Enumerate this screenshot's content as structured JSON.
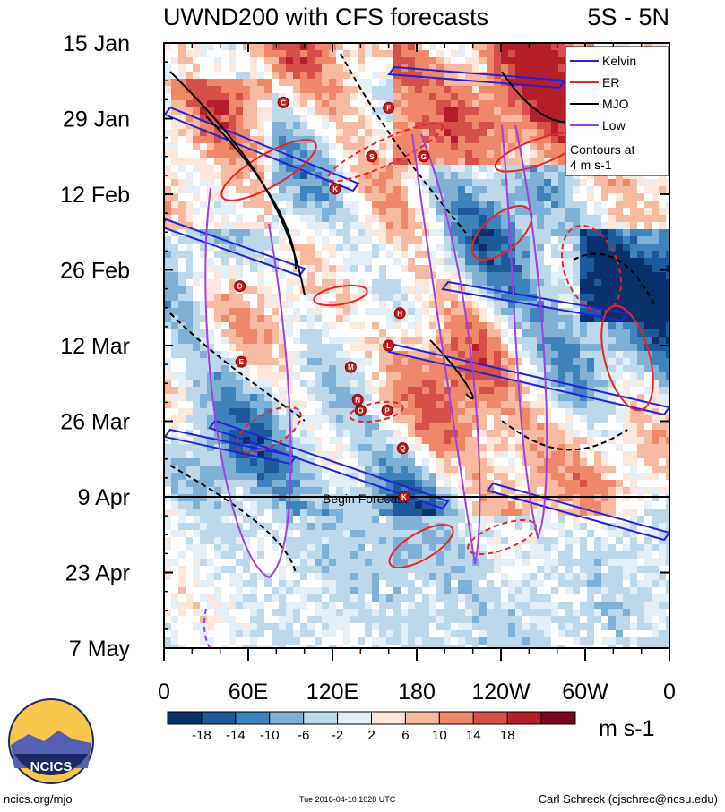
{
  "header": {
    "title": "UWND200 with CFS forecasts",
    "region": "5S - 5N"
  },
  "legend": {
    "items": [
      {
        "label": "Kelvin",
        "color": "#2222dd"
      },
      {
        "label": "ER",
        "color": "#ee2222"
      },
      {
        "label": "MJO",
        "color": "#000000"
      },
      {
        "label": "Low",
        "color": "#a040e0"
      }
    ],
    "note_line1": "Contours at",
    "note_line2": "4 m s-1"
  },
  "colorbar": {
    "units": "m s-1",
    "tick_labels": [
      "-18",
      "-14",
      "-10",
      "-6",
      "-2",
      "2",
      "6",
      "10",
      "14",
      "18"
    ],
    "colors": [
      "#08306b",
      "#1c5a9c",
      "#3f83bd",
      "#7fb1d6",
      "#bcd8ea",
      "#e4eef7",
      "#fde6dc",
      "#f7b9a0",
      "#ef8868",
      "#d6504a",
      "#b51f2c",
      "#7a0622"
    ]
  },
  "footer": {
    "site": "ncics.org/mjo",
    "timestamp": "Tue 2018-04-10 1028 UTC",
    "author": "Carl Schreck (cjschrec@ncsu.edu)",
    "logo_text": "NCICS"
  },
  "annotation": {
    "forecast_label": "Begin Forecast"
  },
  "chart_data": {
    "type": "heatmap",
    "title": "UWND200 with CFS forecasts",
    "subtitle": "5S - 5N",
    "x_axis": {
      "tick_labels": [
        "0",
        "60E",
        "120E",
        "180",
        "120W",
        "60W",
        "0"
      ],
      "range_deg_east": [
        0,
        360
      ]
    },
    "y_axis": {
      "tick_labels": [
        "15 Jan",
        "29 Jan",
        "12 Feb",
        "26 Feb",
        "12 Mar",
        "26 Mar",
        "9 Apr",
        "23 Apr",
        "7 May"
      ],
      "range": [
        "15 Jan",
        "7 May"
      ]
    },
    "forecast_start": "9 Apr",
    "contour_interval": "4 m s-1",
    "legend_position": "top-right",
    "storm_markers": [
      {
        "label": "C",
        "lon": 85,
        "date": "26 Jan"
      },
      {
        "label": "F",
        "lon": 160,
        "date": "27 Jan"
      },
      {
        "label": "S",
        "lon": 148,
        "date": "5 Feb"
      },
      {
        "label": "G",
        "lon": 185,
        "date": "5 Feb"
      },
      {
        "label": "K",
        "lon": 122,
        "date": "11 Feb"
      },
      {
        "label": "D",
        "lon": 54,
        "date": "1 Mar"
      },
      {
        "label": "H",
        "lon": 168,
        "date": "6 Mar"
      },
      {
        "label": "L",
        "lon": 160,
        "date": "12 Mar"
      },
      {
        "label": "E",
        "lon": 55,
        "date": "15 Mar"
      },
      {
        "label": "M",
        "lon": 133,
        "date": "16 Mar"
      },
      {
        "label": "N",
        "lon": 138,
        "date": "22 Mar"
      },
      {
        "label": "O",
        "lon": 140,
        "date": "24 Mar"
      },
      {
        "label": "P",
        "lon": 159,
        "date": "24 Mar"
      },
      {
        "label": "Q",
        "lon": 170,
        "date": "31 Mar"
      },
      {
        "label": "K",
        "lon": 171,
        "date": "9 Apr"
      }
    ]
  }
}
